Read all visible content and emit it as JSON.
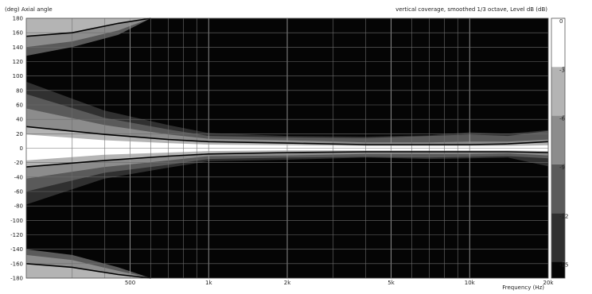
{
  "chart_data": {
    "type": "heatmap",
    "title": "vertical coverage, smoothed 1/3 octave, Level dB  (dB)",
    "ylabel": "(deg)  Axial angle",
    "xlabel": "Frequency  (Hz)",
    "x_scale": "log",
    "xlim": [
      200,
      20000
    ],
    "ylim": [
      -180,
      180
    ],
    "grid": true,
    "x_ticks": [
      {
        "value": 500,
        "label": "500"
      },
      {
        "value": 1000,
        "label": "1k"
      },
      {
        "value": 2000,
        "label": "2k"
      },
      {
        "value": 5000,
        "label": "5k"
      },
      {
        "value": 10000,
        "label": "10k"
      },
      {
        "value": 20000,
        "label": "20k"
      }
    ],
    "y_ticks": [
      {
        "value": 180,
        "label": "180"
      },
      {
        "value": 160,
        "label": "160"
      },
      {
        "value": 140,
        "label": "140"
      },
      {
        "value": 120,
        "label": "120"
      },
      {
        "value": 100,
        "label": "100"
      },
      {
        "value": 80,
        "label": "80"
      },
      {
        "value": 60,
        "label": "60"
      },
      {
        "value": 40,
        "label": "40"
      },
      {
        "value": 20,
        "label": "20"
      },
      {
        "value": 0,
        "label": "0"
      },
      {
        "value": -20,
        "label": "-20"
      },
      {
        "value": -40,
        "label": "-40"
      },
      {
        "value": -60,
        "label": "-60"
      },
      {
        "value": -80,
        "label": "-80"
      },
      {
        "value": -100,
        "label": "-100"
      },
      {
        "value": -120,
        "label": "-120"
      },
      {
        "value": -140,
        "label": "-140"
      },
      {
        "value": -160,
        "label": "-160"
      },
      {
        "value": -180,
        "label": "-180"
      }
    ],
    "levels": [
      {
        "range": [
          -3,
          0
        ],
        "color": "#ffffff"
      },
      {
        "range": [
          -6,
          -3
        ],
        "color": "#b4b4b4"
      },
      {
        "range": [
          -9,
          -6
        ],
        "color": "#8c8c8c"
      },
      {
        "range": [
          -12,
          -9
        ],
        "color": "#5a5a5a"
      },
      {
        "range": [
          -15,
          -12
        ],
        "color": "#303030"
      },
      {
        "range": [
          -99,
          -15
        ],
        "color": "#050505"
      }
    ],
    "colorbar_ticks": [
      {
        "value": 0,
        "label": "0"
      },
      {
        "value": -3,
        "label": "-3"
      },
      {
        "value": -6,
        "label": "-6"
      },
      {
        "value": -9,
        "label": "-9"
      },
      {
        "value": -12,
        "label": "-12"
      },
      {
        "value": -15,
        "label": "-15"
      }
    ],
    "frequencies": [
      200,
      400,
      700,
      1000,
      2000,
      4000,
      7000,
      10000,
      14000,
      20000
    ],
    "contours": {
      "-3": {
        "upper": [
          19,
          11,
          7,
          5,
          4,
          3,
          3,
          3,
          3,
          4
        ],
        "lower": [
          -17,
          -9,
          -6,
          -4,
          -3,
          -3,
          -3,
          -3,
          -3,
          -4
        ]
      },
      "-6": {
        "upper": [
          30,
          19,
          12,
          9,
          7,
          5,
          5,
          5,
          6,
          9
        ],
        "lower": [
          -26,
          -17,
          -11,
          -8,
          -6,
          -5,
          -5,
          -5,
          -5,
          -6
        ]
      },
      "-9": {
        "upper": [
          55,
          32,
          19,
          13,
          11,
          8,
          8,
          9,
          9,
          12
        ],
        "lower": [
          -42,
          -26,
          -17,
          -11,
          -10,
          -8,
          -8,
          -8,
          -7,
          -10
        ]
      },
      "-12": {
        "upper": [
          75,
          42,
          26,
          17,
          15,
          14,
          17,
          19,
          17,
          24
        ],
        "lower": [
          -60,
          -34,
          -23,
          -15,
          -13,
          -12,
          -13,
          -12,
          -11,
          -14
        ]
      },
      "-15": {
        "upper": [
          92,
          52,
          32,
          21,
          17,
          16,
          18,
          22,
          20,
          25
        ],
        "lower": [
          -78,
          -42,
          -27,
          -18,
          -16,
          -13,
          -15,
          -14,
          -13,
          -25
        ]
      }
    },
    "rear_lobe": {
      "-6": {
        "top": [
          155,
          160,
          173,
          180
        ],
        "bottom": [
          -160,
          -165,
          -175,
          -180
        ]
      },
      "-9": {
        "top": [
          140,
          148,
          163,
          180
        ],
        "bottom": [
          -148,
          -155,
          -170,
          -180
        ]
      },
      "-12": {
        "top": [
          128,
          140,
          157,
          180
        ],
        "bottom": [
          -140,
          -148,
          -165,
          -180
        ]
      }
    },
    "rear_frequencies": [
      200,
      300,
      450,
      600
    ]
  }
}
